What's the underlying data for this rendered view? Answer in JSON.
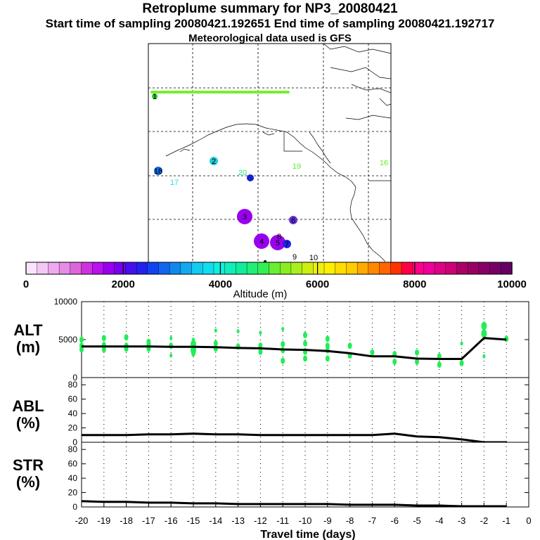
{
  "header": {
    "title": "Retroplume summary for NP3_20080421",
    "line2": "Start time of sampling 20080421.192651     End time of sampling 20080421.192717",
    "line3": "Meteorological data used is GFS"
  },
  "map": {
    "labels": [
      {
        "text": "1",
        "color": "#22cc22",
        "size": "s"
      },
      {
        "text": "2",
        "color": "#22ccdd",
        "size": "m"
      },
      {
        "text": "3",
        "color": "#9900ee",
        "size": "l"
      },
      {
        "text": "4",
        "color": "#9900ee",
        "size": "l"
      },
      {
        "text": "5",
        "color": "#9900ee",
        "size": "l"
      },
      {
        "text": "6",
        "color": "#6633dd",
        "size": "m"
      },
      {
        "text": "7",
        "color": "#2222ee",
        "size": "m"
      },
      {
        "text": "8",
        "color": "#000000",
        "size": "t"
      },
      {
        "text": "9",
        "color": "#000000",
        "size": "t"
      },
      {
        "text": "10",
        "color": "#000000",
        "size": "t"
      },
      {
        "text": "16",
        "color": "#66ee22",
        "size": "t"
      },
      {
        "text": "17",
        "color": "#22dddd",
        "size": "t"
      },
      {
        "text": "18",
        "color": "#1166dd",
        "size": "m"
      },
      {
        "text": "19",
        "color": "#55ee33",
        "size": "t"
      },
      {
        "text": "20",
        "color": "#22dd88",
        "size": "t"
      }
    ]
  },
  "colorbar": {
    "tick_labels": [
      "0",
      "2000",
      "4000",
      "6000",
      "8000",
      "10000"
    ],
    "axis_label": "Altitude (m)",
    "colors": [
      "#fbe4fb",
      "#f4c8f4",
      "#eeaaee",
      "#e68be6",
      "#dd66dd",
      "#cc33dd",
      "#bb11ee",
      "#9900ee",
      "#7700ee",
      "#4411ee",
      "#2222ee",
      "#1144ee",
      "#1166ee",
      "#1188ee",
      "#11aaee",
      "#11ccee",
      "#11ddee",
      "#11eedd",
      "#11eebb",
      "#11ee99",
      "#22ee77",
      "#33ee55",
      "#66ee33",
      "#88ee22",
      "#aaee22",
      "#ccee11",
      "#eeee11",
      "#ffee00",
      "#ffdd00",
      "#ffcc00",
      "#ffaa00",
      "#ff8800",
      "#ff6600",
      "#ff3300",
      "#ff0044",
      "#ff0088",
      "#ee0099",
      "#dd0088",
      "#cc0077",
      "#aa0066",
      "#990066",
      "#880066",
      "#770066",
      "#660066"
    ]
  },
  "panels": {
    "alt_label": "ALT\n(m)",
    "abl_label": "ABL\n(%)",
    "str_label": "STR\n(%)",
    "x_label": "Travel time (days)"
  },
  "chart_data": [
    {
      "type": "line",
      "title": "ALT",
      "ylabel": "ALT (m)",
      "xlabel": "Travel time (days)",
      "x": [
        -20,
        -19,
        -18,
        -17,
        -16,
        -15,
        -14,
        -13,
        -12,
        -11,
        -10,
        -9,
        -8,
        -7,
        -6,
        -5,
        -4,
        -3,
        -2,
        -1
      ],
      "values": [
        4100,
        4100,
        4100,
        4100,
        4050,
        4050,
        4000,
        3900,
        3850,
        3700,
        3650,
        3500,
        3200,
        2800,
        2800,
        2500,
        2450,
        2450,
        5200,
        5000
      ],
      "ylim": [
        0,
        10000
      ],
      "yticks": [
        "0",
        "5000",
        "10000"
      ],
      "xticks": [
        "-20",
        "-19",
        "-18",
        "-17",
        "-16",
        "-15",
        "-14",
        "-13",
        "-12",
        "-11",
        "-10",
        "-9",
        "-8",
        "-7",
        "-6",
        "-5",
        "-4",
        "-3",
        "-2",
        "-1",
        "0"
      ],
      "scatter": {
        "name": "particle clusters",
        "x": [
          -20,
          -20,
          -20,
          -19,
          -19,
          -19,
          -18,
          -18,
          -18,
          -17,
          -17,
          -17,
          -16,
          -16,
          -16,
          -15,
          -15,
          -15,
          -15,
          -14,
          -14,
          -14,
          -13,
          -13,
          -12,
          -12,
          -12,
          -11,
          -11,
          -11,
          -11,
          -10,
          -10,
          -10,
          -10,
          -9,
          -9,
          -9,
          -9,
          -8,
          -8,
          -7,
          -6,
          -6,
          -5,
          -5,
          -4,
          -4,
          -3,
          -3,
          -2,
          -2,
          -2,
          -1
        ],
        "y": [
          5000,
          4200,
          3700,
          5200,
          4300,
          3700,
          5300,
          4200,
          3800,
          4700,
          4300,
          3800,
          5200,
          4200,
          2900,
          5000,
          4400,
          3600,
          3200,
          6200,
          4500,
          3800,
          6100,
          4100,
          5900,
          4200,
          3400,
          6400,
          4400,
          3600,
          2200,
          5600,
          4500,
          3400,
          2500,
          5100,
          4200,
          3600,
          2500,
          4200,
          2900,
          3300,
          3100,
          2100,
          3300,
          2100,
          2800,
          1700,
          4500,
          1900,
          6800,
          5800,
          2800,
          5100
        ],
        "size": [
          3,
          3,
          3,
          3,
          3,
          3,
          3,
          3,
          3,
          3,
          3,
          3,
          2,
          3,
          2,
          2,
          4,
          4,
          3,
          2,
          3,
          3,
          2,
          3,
          2,
          3,
          3,
          2,
          3,
          3,
          3,
          3,
          3,
          3,
          3,
          3,
          3,
          3,
          3,
          3,
          3,
          3,
          3,
          3,
          3,
          3,
          3,
          3,
          2,
          3,
          4,
          4,
          2,
          3
        ]
      }
    },
    {
      "type": "line",
      "title": "ABL",
      "ylabel": "ABL (%)",
      "x": [
        -20,
        -19,
        -18,
        -17,
        -16,
        -15,
        -14,
        -13,
        -12,
        -11,
        -10,
        -9,
        -8,
        -7,
        -6,
        -5,
        -4,
        -3,
        -2,
        -1
      ],
      "values": [
        10,
        10,
        10,
        11,
        11,
        12,
        11,
        11,
        10,
        10,
        10,
        10,
        10,
        10,
        12,
        8,
        7,
        4,
        0,
        0
      ],
      "ylim": [
        0,
        90
      ],
      "yticks": [
        "0",
        "20",
        "40",
        "60",
        "80"
      ]
    },
    {
      "type": "line",
      "title": "STR",
      "ylabel": "STR (%)",
      "x": [
        -20,
        -19,
        -18,
        -17,
        -16,
        -15,
        -14,
        -13,
        -12,
        -11,
        -10,
        -9,
        -8,
        -7,
        -6,
        -5,
        -4,
        -3,
        -2,
        -1
      ],
      "values": [
        8,
        7,
        7,
        6,
        6,
        5,
        5,
        4,
        4,
        4,
        4,
        4,
        3,
        3,
        3,
        2,
        2,
        1,
        1,
        1
      ],
      "ylim": [
        0,
        90
      ],
      "yticks": [
        "0",
        "20",
        "40",
        "60",
        "80"
      ]
    }
  ]
}
